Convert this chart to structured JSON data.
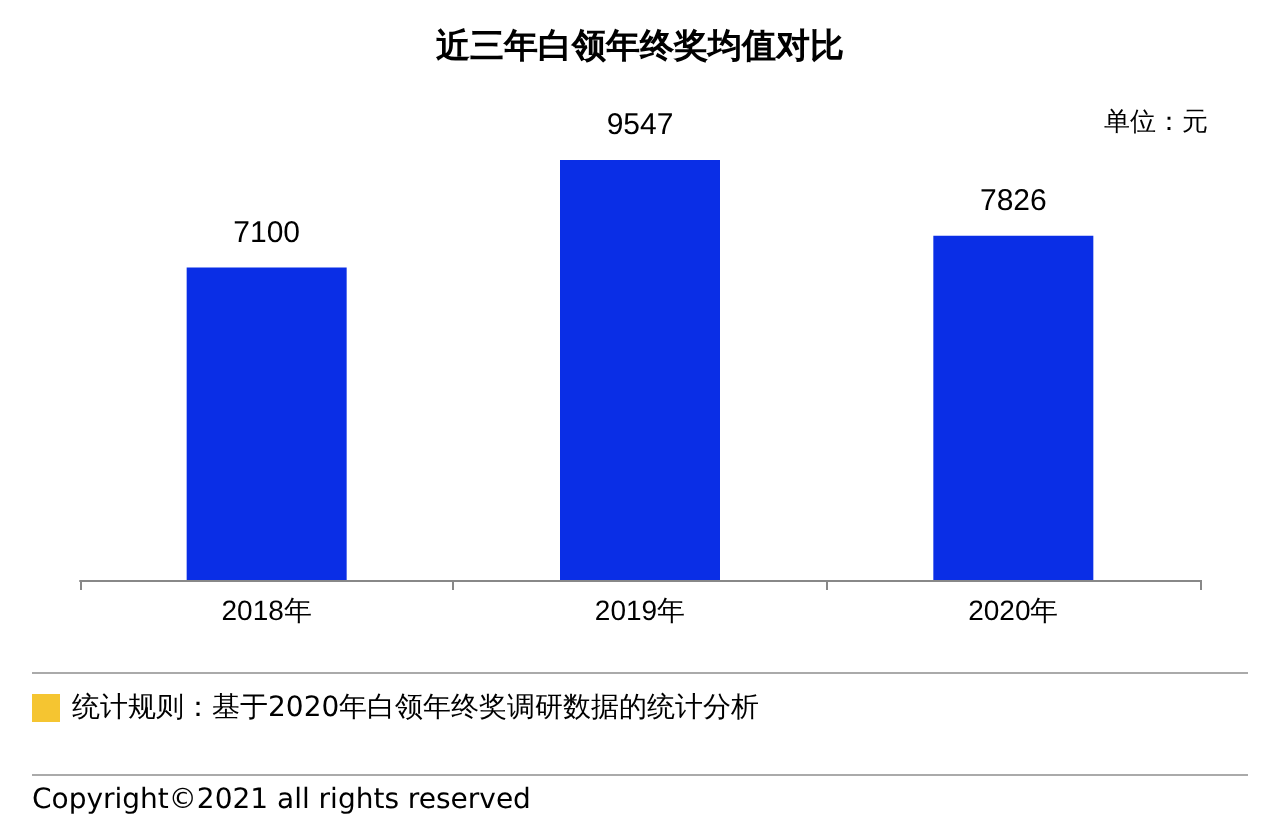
{
  "chart_data": {
    "type": "bar",
    "title": "近三年白领年终奖均值对比",
    "ylabel": "单位：元",
    "categories": [
      "2018年",
      "2019年",
      "2020年"
    ],
    "values": [
      7100,
      9547,
      7826
    ],
    "color": "#0a2ee6",
    "data_labels": true,
    "annotations": [
      "统计规则：基于2020年白领年终奖调研数据的统计分析",
      "Copyright©2021 all rights reserved"
    ]
  }
}
